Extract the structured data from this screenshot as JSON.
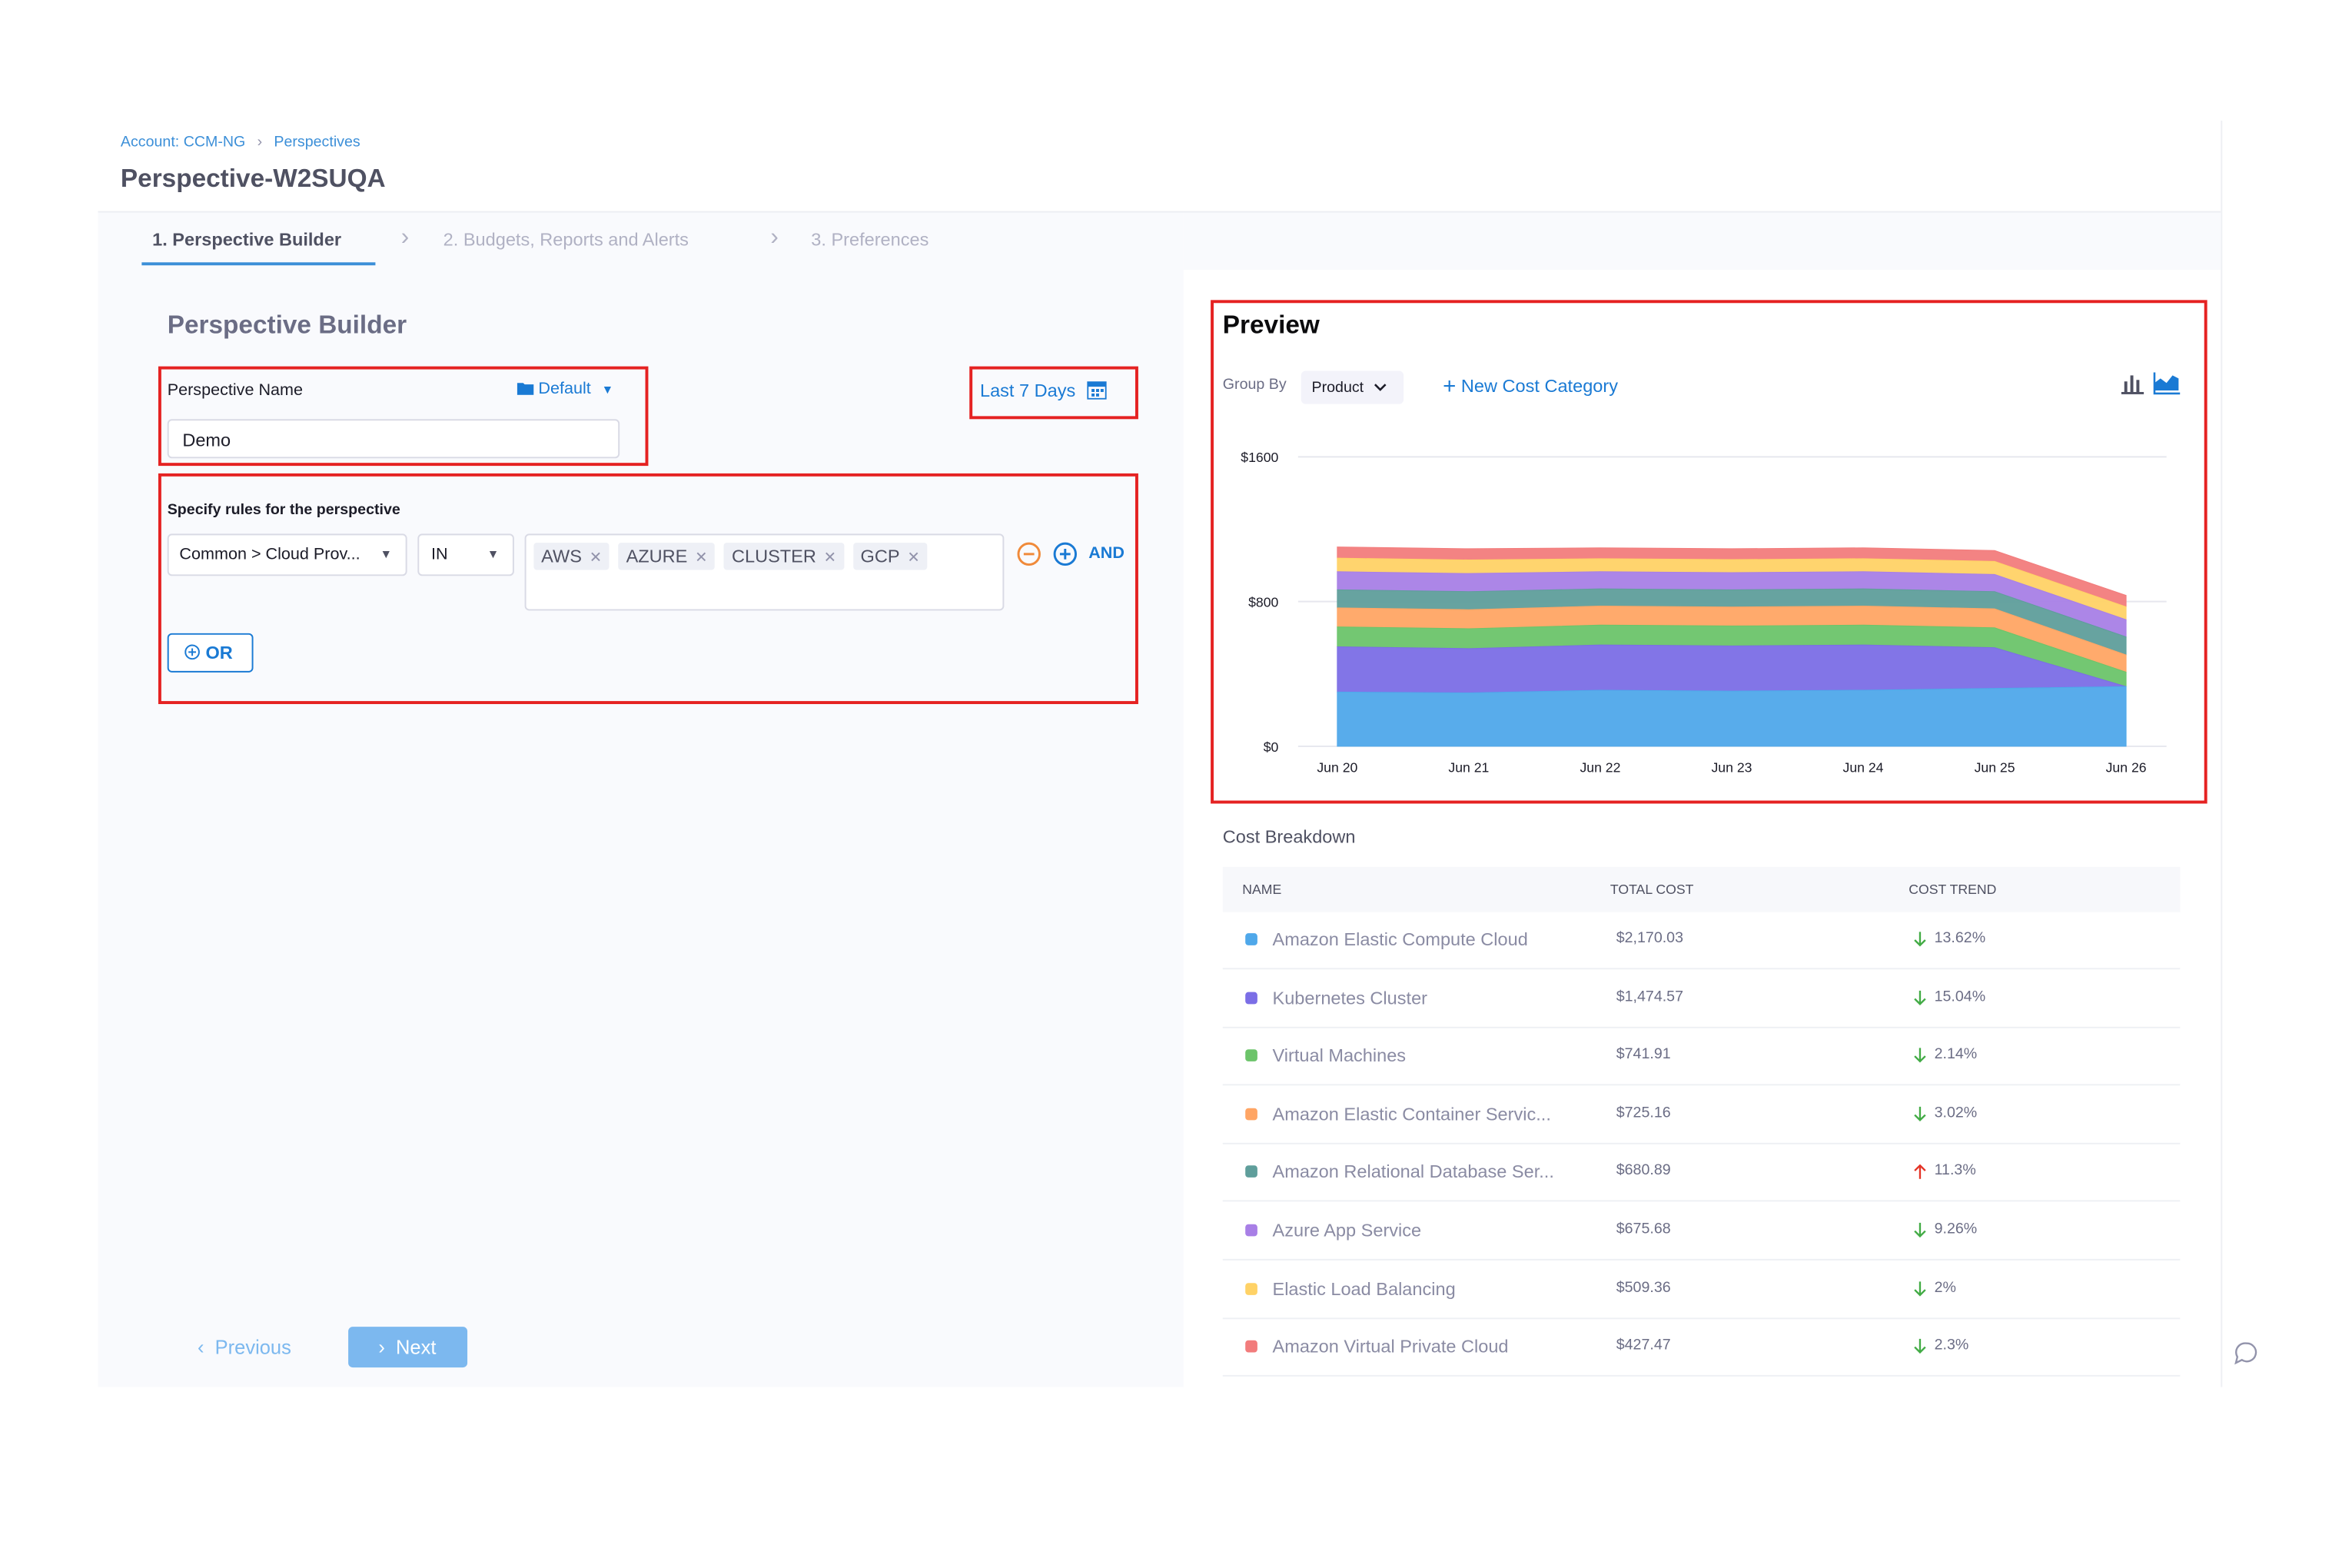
{
  "breadcrumb": [
    "Account: CCM-NG",
    "Perspectives"
  ],
  "title": "Perspective-W2SUQA",
  "steps": [
    "1. Perspective Builder",
    "2. Budgets, Reports and Alerts",
    "3. Preferences"
  ],
  "builder": {
    "heading": "Perspective Builder",
    "name_label": "Perspective Name",
    "folder": "Default",
    "name_value": "Demo",
    "time_range": "Last 7 Days",
    "rules_label": "Specify rules for the perspective",
    "rule": {
      "field": "Common > Cloud Prov...",
      "operator": "IN",
      "values": [
        "AWS",
        "AZURE",
        "CLUSTER",
        "GCP"
      ]
    },
    "and": "AND",
    "or": "OR"
  },
  "nav": {
    "previous": "Previous",
    "next": "Next"
  },
  "preview": {
    "heading": "Preview",
    "group_by_label": "Group By",
    "group_by": "Product",
    "new_category": "New Cost Category",
    "chart": {
      "type": "area",
      "stacked": true,
      "grid": true,
      "categories": [
        "Jun 20",
        "Jun 21",
        "Jun 22",
        "Jun 23",
        "Jun 24",
        "Jun 25",
        "Jun 26"
      ],
      "ylim": [
        0,
        1600
      ],
      "yticks": [
        {
          "value": 0,
          "label": "$0"
        },
        {
          "value": 800,
          "label": "$800"
        },
        {
          "value": 1600,
          "label": "$1600"
        }
      ],
      "series": [
        {
          "name": "Amazon Elastic Compute Cloud",
          "color": "#4fa8ea",
          "values": [
            300,
            295,
            310,
            305,
            310,
            320,
            330
          ]
        },
        {
          "name": "Kubernetes Cluster",
          "color": "#7b6ee6",
          "values": [
            250,
            245,
            250,
            250,
            250,
            225,
            0
          ]
        },
        {
          "name": "Virtual Machines",
          "color": "#6cc46a",
          "values": [
            110,
            110,
            110,
            110,
            110,
            110,
            80
          ]
        },
        {
          "name": "Amazon Elastic Container Servic...",
          "color": "#ffa564",
          "values": [
            105,
            105,
            105,
            105,
            105,
            105,
            95
          ]
        },
        {
          "name": "Amazon Relational Database Ser...",
          "color": "#5f9e9b",
          "values": [
            100,
            100,
            95,
            95,
            95,
            95,
            100
          ]
        },
        {
          "name": "Azure App Service",
          "color": "#a87fe6",
          "values": [
            100,
            100,
            95,
            95,
            95,
            95,
            95
          ]
        },
        {
          "name": "Elastic Load Balancing",
          "color": "#ffd266",
          "values": [
            75,
            75,
            72,
            72,
            72,
            72,
            71
          ]
        },
        {
          "name": "Amazon Virtual Private Cloud",
          "color": "#f27c7c",
          "values": [
            62,
            62,
            60,
            60,
            60,
            60,
            63
          ]
        }
      ]
    }
  },
  "cost_breakdown": {
    "title": "Cost Breakdown",
    "columns": [
      "NAME",
      "TOTAL COST",
      "COST TREND"
    ],
    "rows": [
      {
        "name": "Amazon Elastic Compute Cloud",
        "color": "#4fa8ea",
        "total": "$2,170.03",
        "trend": "13.62%",
        "direction": "down"
      },
      {
        "name": "Kubernetes Cluster",
        "color": "#7b6ee6",
        "total": "$1,474.57",
        "trend": "15.04%",
        "direction": "down"
      },
      {
        "name": "Virtual Machines",
        "color": "#6cc46a",
        "total": "$741.91",
        "trend": "2.14%",
        "direction": "down"
      },
      {
        "name": "Amazon Elastic Container Servic...",
        "color": "#ffa564",
        "total": "$725.16",
        "trend": "3.02%",
        "direction": "down"
      },
      {
        "name": "Amazon Relational Database Ser...",
        "color": "#5f9e9b",
        "total": "$680.89",
        "trend": "11.3%",
        "direction": "up"
      },
      {
        "name": "Azure App Service",
        "color": "#a87fe6",
        "total": "$675.68",
        "trend": "9.26%",
        "direction": "down"
      },
      {
        "name": "Elastic Load Balancing",
        "color": "#ffd266",
        "total": "$509.36",
        "trend": "2%",
        "direction": "down"
      },
      {
        "name": "Amazon Virtual Private Cloud",
        "color": "#f27c7c",
        "total": "$427.47",
        "trend": "2.3%",
        "direction": "down"
      }
    ]
  }
}
